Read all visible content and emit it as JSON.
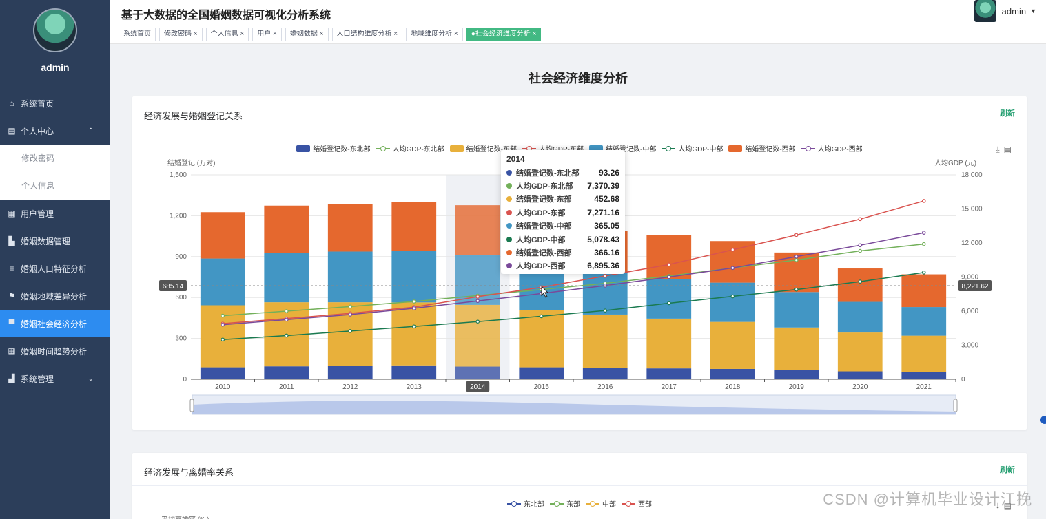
{
  "sidebar": {
    "user": "admin",
    "menu": [
      {
        "label": "系统首页",
        "icon": "home-icon"
      },
      {
        "label": "个人中心",
        "icon": "user-center-icon",
        "expanded": true
      },
      {
        "label": "用户管理",
        "icon": "grid-icon"
      },
      {
        "label": "婚姻数据管理",
        "icon": "data-icon"
      },
      {
        "label": "婚姻人口特征分析",
        "icon": "sliders-icon"
      },
      {
        "label": "婚姻地域差异分析",
        "icon": "flag-icon"
      },
      {
        "label": "婚姻社会经济分析",
        "icon": "display-icon",
        "active": true
      },
      {
        "label": "婚姻时间趋势分析",
        "icon": "grid-icon"
      },
      {
        "label": "系统管理",
        "icon": "bar-chart-icon"
      }
    ],
    "submenu": [
      "修改密码",
      "个人信息"
    ]
  },
  "header": {
    "title": "基于大数据的全国婚姻数据可视化分析系统",
    "user": "admin"
  },
  "tabs": [
    {
      "label": "系统首页"
    },
    {
      "label": "修改密码 ×"
    },
    {
      "label": "个人信息 ×"
    },
    {
      "label": "用户 ×"
    },
    {
      "label": "婚姻数据 ×"
    },
    {
      "label": "人口结构维度分析 ×"
    },
    {
      "label": "地域维度分析 ×"
    },
    {
      "label": "●社会经济维度分析 ×",
      "active": true
    }
  ],
  "page_title": "社会经济维度分析",
  "card1": {
    "title": "经济发展与婚姻登记关系",
    "refresh": "刷新"
  },
  "card2": {
    "title": "经济发展与离婚率关系",
    "refresh": "刷新"
  },
  "chart_data": [
    {
      "type": "bar",
      "title": "",
      "categories": [
        "2010",
        "2011",
        "2012",
        "2013",
        "2014",
        "2015",
        "2016",
        "2017",
        "2018",
        "2019",
        "2020",
        "2021"
      ],
      "ylabel": "结婚登记 (万对)",
      "ylabel_right": "人均GDP (元)",
      "ylim": [
        0,
        1500
      ],
      "ylim_right": [
        0,
        18000
      ],
      "yticks": [
        "0",
        "300",
        "600",
        "900",
        "1,200",
        "1,500"
      ],
      "yticks_right": [
        "0",
        "3,000",
        "6,000",
        "9,000",
        "12,000",
        "15,000",
        "18,000"
      ],
      "legend_position": "top",
      "grid": true,
      "series": [
        {
          "name": "结婚登记数-东北部",
          "kind": "bar",
          "color": "#3953a4",
          "values": [
            88,
            95,
            97,
            102,
            93.26,
            88,
            85,
            80,
            76,
            70,
            58,
            55
          ]
        },
        {
          "name": "人均GDP-东北部",
          "kind": "line",
          "color": "#73b05a",
          "values": [
            5600,
            6000,
            6400,
            6850,
            7370.39,
            7900,
            8450,
            9100,
            9800,
            10500,
            11300,
            11900
          ]
        },
        {
          "name": "结婚登记数-东部",
          "kind": "bar",
          "color": "#e8b03b",
          "values": [
            455,
            470,
            468,
            462,
            452.68,
            420,
            390,
            365,
            345,
            310,
            285,
            265
          ]
        },
        {
          "name": "人均GDP-东部",
          "kind": "line",
          "color": "#d9534f",
          "values": [
            4900,
            5350,
            5800,
            6350,
            7271.16,
            8100,
            9100,
            10100,
            11400,
            12700,
            14100,
            15700
          ]
        },
        {
          "name": "结婚登记数-中部",
          "kind": "bar",
          "color": "#4296c4",
          "values": [
            343,
            364,
            372,
            379,
            365.05,
            340,
            315,
            290,
            288,
            260,
            225,
            210
          ]
        },
        {
          "name": "人均GDP-中部",
          "kind": "line",
          "color": "#1a7a50",
          "values": [
            3500,
            3850,
            4250,
            4650,
            5078.43,
            5550,
            6050,
            6700,
            7300,
            7900,
            8600,
            9400
          ]
        },
        {
          "name": "结婚登记数-西部",
          "kind": "bar",
          "color": "#e5682e",
          "values": [
            340,
            345,
            350,
            355,
            366.16,
            330,
            300,
            325,
            305,
            290,
            245,
            240
          ]
        },
        {
          "name": "人均GDP-西部",
          "kind": "line",
          "color": "#7a4a9a",
          "values": [
            4800,
            5250,
            5700,
            6250,
            6895.36,
            7550,
            8250,
            9000,
            9800,
            10800,
            11800,
            12900
          ]
        }
      ],
      "highlight": {
        "category": "2014",
        "y_left": "685.14",
        "y_right": "8,221.62"
      }
    },
    {
      "type": "line",
      "ylabel": "平均离婚率 (‰)",
      "legend_position": "top",
      "series": [
        {
          "name": "东北部",
          "color": "#3953a4"
        },
        {
          "name": "东部",
          "color": "#73b05a"
        },
        {
          "name": "中部",
          "color": "#e8b03b"
        },
        {
          "name": "西部",
          "color": "#d9534f"
        }
      ]
    }
  ],
  "tooltip": {
    "title": "2014",
    "rows": [
      {
        "name": "结婚登记数-东北部",
        "value": "93.26",
        "color": "#3953a4"
      },
      {
        "name": "人均GDP-东北部",
        "value": "7,370.39",
        "color": "#73b05a"
      },
      {
        "name": "结婚登记数-东部",
        "value": "452.68",
        "color": "#e8b03b"
      },
      {
        "name": "人均GDP-东部",
        "value": "7,271.16",
        "color": "#d9534f"
      },
      {
        "name": "结婚登记数-中部",
        "value": "365.05",
        "color": "#4296c4"
      },
      {
        "name": "人均GDP-中部",
        "value": "5,078.43",
        "color": "#1a7a50"
      },
      {
        "name": "结婚登记数-西部",
        "value": "366.16",
        "color": "#e5682e"
      },
      {
        "name": "人均GDP-西部",
        "value": "6,895.36",
        "color": "#7a4a9a"
      }
    ]
  },
  "watermark": "CSDN @计算机毕业设计江挽"
}
